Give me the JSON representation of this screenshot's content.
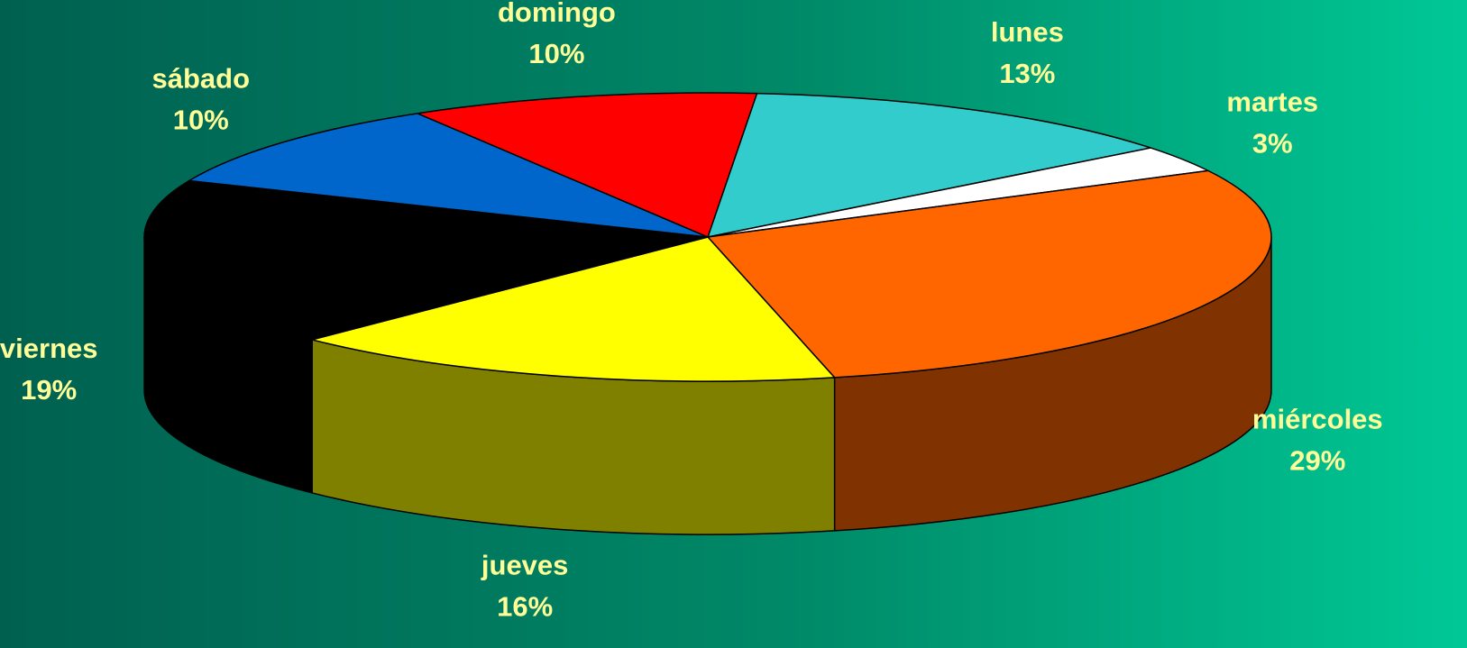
{
  "chart_data": {
    "type": "pie3d",
    "categories": [
      "lunes",
      "martes",
      "miércoles",
      "jueves",
      "viernes",
      "sábado",
      "domingo"
    ],
    "values": [
      13,
      3,
      29,
      16,
      19,
      10,
      10
    ],
    "value_labels": [
      "13%",
      "3%",
      "29%",
      "16%",
      "19%",
      "10%",
      "10%"
    ],
    "colors": [
      "#33cccc",
      "#ffffff",
      "#ff6600",
      "#ffff00",
      "#000000",
      "#0066cc",
      "#ff0000"
    ]
  }
}
